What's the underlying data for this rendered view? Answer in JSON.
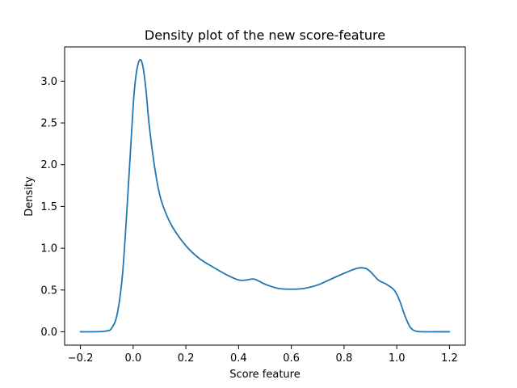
{
  "chart_data": {
    "type": "line",
    "title": "Density plot of the new score-feature",
    "xlabel": "Score feature",
    "ylabel": "Density",
    "xlim": [
      -0.26,
      1.26
    ],
    "ylim": [
      -0.16,
      3.41
    ],
    "grid": false,
    "legend": "none",
    "line_color": "#1f77b4",
    "x_ticks": [
      -0.2,
      0.0,
      0.2,
      0.4,
      0.6,
      0.8,
      1.0,
      1.2
    ],
    "x_tick_labels": [
      "−0.2",
      "0.0",
      "0.2",
      "0.4",
      "0.6",
      "0.8",
      "1.0",
      "1.2"
    ],
    "y_ticks": [
      0.0,
      0.5,
      1.0,
      1.5,
      2.0,
      2.5,
      3.0
    ],
    "y_tick_labels": [
      "0.0",
      "0.5",
      "1.0",
      "1.5",
      "2.0",
      "2.5",
      "3.0"
    ],
    "series": [
      {
        "x": [
          -0.2,
          -0.15,
          -0.1,
          -0.08,
          -0.06,
          -0.04,
          -0.02,
          0.0,
          0.01,
          0.02,
          0.03,
          0.04,
          0.05,
          0.06,
          0.08,
          0.1,
          0.12,
          0.15,
          0.2,
          0.25,
          0.3,
          0.35,
          0.4,
          0.43,
          0.46,
          0.5,
          0.55,
          0.6,
          0.65,
          0.7,
          0.75,
          0.8,
          0.85,
          0.88,
          0.9,
          0.93,
          0.96,
          0.99,
          1.01,
          1.03,
          1.05,
          1.07,
          1.1,
          1.15,
          1.2
        ],
        "y": [
          0.0,
          0.0,
          0.01,
          0.05,
          0.22,
          0.7,
          1.65,
          2.7,
          3.05,
          3.22,
          3.25,
          3.12,
          2.85,
          2.5,
          2.0,
          1.65,
          1.45,
          1.25,
          1.03,
          0.88,
          0.78,
          0.69,
          0.62,
          0.62,
          0.63,
          0.57,
          0.52,
          0.51,
          0.52,
          0.56,
          0.63,
          0.7,
          0.76,
          0.76,
          0.72,
          0.62,
          0.57,
          0.5,
          0.38,
          0.2,
          0.06,
          0.01,
          0.0,
          0.0,
          0.0
        ]
      }
    ]
  }
}
